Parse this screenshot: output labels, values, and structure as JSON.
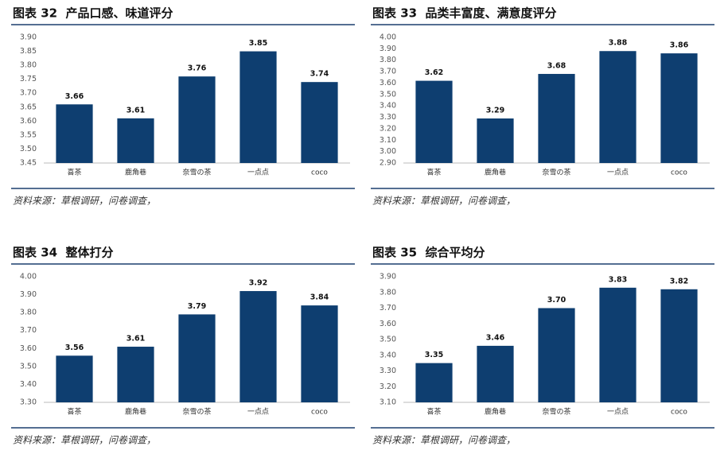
{
  "chart_data": [
    {
      "type": "bar",
      "title": "图表 32  产品口感、味道评分",
      "source": "资料来源：草根调研，问卷调查，",
      "categories": [
        "喜茶",
        "鹿角巷",
        "奈雪の茶",
        "一点点",
        "coco"
      ],
      "values": [
        3.66,
        3.61,
        3.76,
        3.85,
        3.74
      ],
      "color": "#0e3e70",
      "ylim": [
        3.45,
        3.9
      ],
      "yticks": [
        {
          "value": 3.45,
          "label": "3.45"
        },
        {
          "value": 3.5,
          "label": "3.50"
        },
        {
          "value": 3.55,
          "label": "3.55"
        },
        {
          "value": 3.6,
          "label": "3.60"
        },
        {
          "value": 3.65,
          "label": "3.65"
        },
        {
          "value": 3.7,
          "label": "3.70"
        },
        {
          "value": 3.75,
          "label": "3.75"
        },
        {
          "value": 3.8,
          "label": "3.80"
        },
        {
          "value": 3.85,
          "label": "3.85"
        },
        {
          "value": 3.9,
          "label": "3.90"
        }
      ]
    },
    {
      "type": "bar",
      "title": "图表 33  品类丰富度、满意度评分",
      "source": "资料来源：草根调研，问卷调查，",
      "categories": [
        "喜茶",
        "鹿角巷",
        "奈雪の茶",
        "一点点",
        "coco"
      ],
      "values": [
        3.62,
        3.29,
        3.68,
        3.88,
        3.86
      ],
      "color": "#0e3e70",
      "ylim": [
        2.9,
        4.0
      ],
      "yticks": [
        {
          "value": 2.9,
          "label": "2.90"
        },
        {
          "value": 3.0,
          "label": "3.00"
        },
        {
          "value": 3.1,
          "label": "3.10"
        },
        {
          "value": 3.2,
          "label": "3.20"
        },
        {
          "value": 3.3,
          "label": "3.30"
        },
        {
          "value": 3.4,
          "label": "3.40"
        },
        {
          "value": 3.5,
          "label": "3.50"
        },
        {
          "value": 3.6,
          "label": "3.60"
        },
        {
          "value": 3.7,
          "label": "3.70"
        },
        {
          "value": 3.8,
          "label": "3.80"
        },
        {
          "value": 3.9,
          "label": "3.90"
        },
        {
          "value": 4.0,
          "label": "4.00"
        }
      ]
    },
    {
      "type": "bar",
      "title": "图表 34  整体打分",
      "source": "资料来源：草根调研，问卷调查，",
      "categories": [
        "喜茶",
        "鹿角巷",
        "奈雪の茶",
        "一点点",
        "coco"
      ],
      "values": [
        3.56,
        3.61,
        3.79,
        3.92,
        3.84
      ],
      "color": "#0e3e70",
      "ylim": [
        3.3,
        4.0
      ],
      "yticks": [
        {
          "value": 3.3,
          "label": "3.30"
        },
        {
          "value": 3.4,
          "label": "3.40"
        },
        {
          "value": 3.5,
          "label": "3.50"
        },
        {
          "value": 3.6,
          "label": "3.60"
        },
        {
          "value": 3.7,
          "label": "3.70"
        },
        {
          "value": 3.8,
          "label": "3.80"
        },
        {
          "value": 3.9,
          "label": "3.90"
        },
        {
          "value": 4.0,
          "label": "4.00"
        }
      ]
    },
    {
      "type": "bar",
      "title": "图表 35  综合平均分",
      "source": "资料来源：草根调研，问卷调查，",
      "categories": [
        "喜茶",
        "鹿角巷",
        "奈雪の茶",
        "一点点",
        "coco"
      ],
      "values": [
        3.35,
        3.46,
        3.7,
        3.83,
        3.82
      ],
      "value_labels": [
        "3.35",
        "3.46",
        "3.70",
        "3.83",
        "3.82"
      ],
      "color": "#0e3e70",
      "ylim": [
        3.1,
        3.9
      ],
      "yticks": [
        {
          "value": 3.1,
          "label": "3.10"
        },
        {
          "value": 3.2,
          "label": "3.20"
        },
        {
          "value": 3.3,
          "label": "3.30"
        },
        {
          "value": 3.4,
          "label": "3.40"
        },
        {
          "value": 3.5,
          "label": "3.50"
        },
        {
          "value": 3.6,
          "label": "3.60"
        },
        {
          "value": 3.7,
          "label": "3.70"
        },
        {
          "value": 3.8,
          "label": "3.80"
        },
        {
          "value": 3.9,
          "label": "3.90"
        }
      ]
    }
  ]
}
